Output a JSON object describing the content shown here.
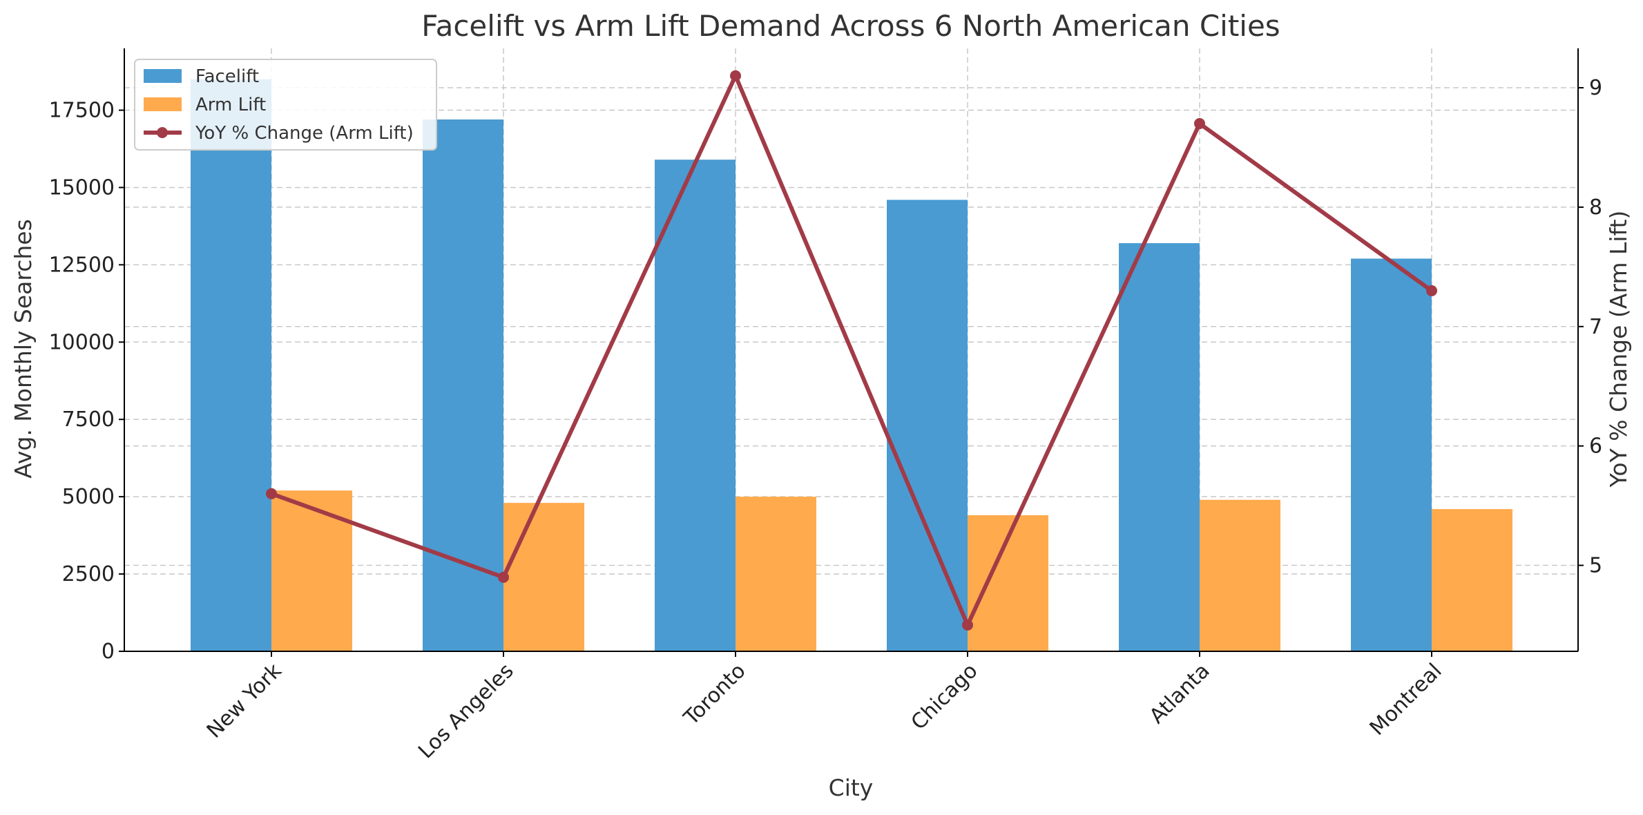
{
  "chart_data": {
    "type": "bar",
    "title": "Facelift vs Arm Lift Demand Across 6 North American Cities",
    "xlabel": "City",
    "ylabel": "Avg. Monthly Searches",
    "y2label": "YoY % Change (Arm Lift)",
    "categories": [
      "New York",
      "Los Angeles",
      "Toronto",
      "Chicago",
      "Atlanta",
      "Montreal"
    ],
    "series": [
      {
        "name": "Facelift",
        "type": "bar",
        "axis": "left",
        "color": "#4a9bd2",
        "values": [
          18500,
          17200,
          15900,
          14600,
          13200,
          12700
        ]
      },
      {
        "name": "Arm Lift",
        "type": "bar",
        "axis": "left",
        "color": "#ffaa4d",
        "values": [
          5200,
          4800,
          5000,
          4400,
          4900,
          4600
        ]
      },
      {
        "name": "YoY % Change (Arm Lift)",
        "type": "line",
        "axis": "right",
        "color": "#a23b47",
        "values": [
          5.6,
          4.9,
          9.1,
          4.5,
          8.7,
          7.3
        ]
      }
    ],
    "ylim": [
      0,
      19500
    ],
    "y_ticks": [
      0,
      2500,
      5000,
      7500,
      10000,
      12500,
      15000,
      17500
    ],
    "y2lim": [
      4.28,
      9.33
    ],
    "y2_ticks": [
      5,
      6,
      7,
      8,
      9
    ],
    "grid": true,
    "legend_position": "upper-left",
    "y2label_color": "#a23b47"
  }
}
